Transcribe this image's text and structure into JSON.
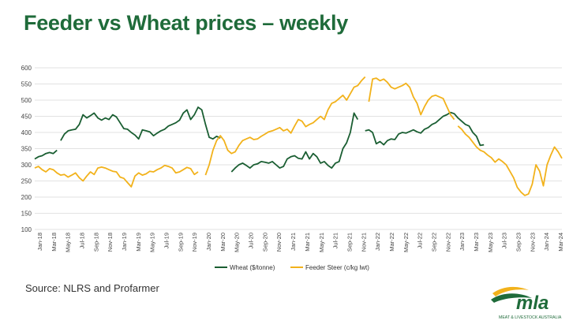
{
  "title": "Feeder vs Wheat prices – weekly",
  "source": "Source: NLRS and Profarmer",
  "logo": {
    "text": "mla",
    "subtext": "MEAT & LIVESTOCK AUSTRALIA"
  },
  "colors": {
    "title": "#1f6b3a",
    "wheat": "#1a5e32",
    "feeder": "#f2b21b",
    "grid": "#d9d9d9"
  },
  "chart_data": {
    "type": "line",
    "title": "Feeder vs Wheat prices – weekly",
    "xlabel": "",
    "ylabel": "",
    "ylim": [
      100,
      600
    ],
    "yticks": [
      100,
      150,
      200,
      250,
      300,
      350,
      400,
      450,
      500,
      550,
      600
    ],
    "grid": "horizontal",
    "legend": "bottom-center",
    "x_tick_labels": [
      "Jan-18",
      "Mar-18",
      "May-18",
      "Jul-18",
      "Sep-18",
      "Nov-18",
      "Jan-19",
      "Mar-19",
      "May-19",
      "Jul-19",
      "Sep-19",
      "Nov-19",
      "Jan-20",
      "Mar-20",
      "May-20",
      "Jul-20",
      "Sep-20",
      "Nov-20",
      "Jan-21",
      "Mar-21",
      "May-21",
      "Jul-21",
      "Sep-21",
      "Nov-21",
      "Jan-22",
      "Mar-22",
      "May-22",
      "Jul-22",
      "Sep-22",
      "Nov-22",
      "Jan-23",
      "Mar-23",
      "May-23",
      "Jul-23",
      "Sep-23",
      "Nov-23",
      "Jan-24",
      "Mar-24"
    ],
    "series": [
      {
        "name": "Wheat ($/tonne)",
        "color": "#1a5e32",
        "segments": [
          [
            [
              0,
              318
            ],
            [
              0.5,
              325
            ],
            [
              1,
              328
            ],
            [
              1.5,
              335
            ],
            [
              2,
              338
            ],
            [
              2.5,
              335
            ],
            [
              3,
              345
            ]
          ],
          [
            [
              3.5,
              375
            ],
            [
              4,
              395
            ],
            [
              4.5,
              405
            ],
            [
              5,
              408
            ],
            [
              5.5,
              410
            ],
            [
              6,
              425
            ],
            [
              6.5,
              455
            ],
            [
              7,
              445
            ],
            [
              7.5,
              452
            ],
            [
              8,
              460
            ],
            [
              8.5,
              445
            ],
            [
              9,
              438
            ],
            [
              9.5,
              445
            ],
            [
              10,
              440
            ],
            [
              10.5,
              455
            ],
            [
              11,
              448
            ],
            [
              11.5,
              430
            ],
            [
              12,
              412
            ],
            [
              12.5,
              410
            ],
            [
              13,
              400
            ],
            [
              13.5,
              392
            ],
            [
              14,
              380
            ],
            [
              14.5,
              408
            ],
            [
              15,
              405
            ],
            [
              15.5,
              402
            ],
            [
              16,
              390
            ],
            [
              16.5,
              398
            ],
            [
              17,
              405
            ],
            [
              17.5,
              410
            ],
            [
              18,
              420
            ],
            [
              18.5,
              425
            ],
            [
              19,
              430
            ],
            [
              19.5,
              438
            ],
            [
              20,
              460
            ],
            [
              20.5,
              470
            ],
            [
              21,
              440
            ],
            [
              21.5,
              455
            ],
            [
              22,
              478
            ],
            [
              22.5,
              470
            ],
            [
              23,
              425
            ],
            [
              23.5,
              385
            ],
            [
              24,
              380
            ],
            [
              24.5,
              388
            ],
            [
              25,
              383
            ]
          ],
          [
            [
              26.5,
              278
            ],
            [
              27,
              290
            ],
            [
              27.5,
              300
            ],
            [
              28,
              305
            ],
            [
              28.5,
              298
            ],
            [
              29,
              290
            ],
            [
              29.5,
              300
            ],
            [
              30,
              303
            ],
            [
              30.5,
              310
            ],
            [
              31,
              308
            ],
            [
              31.5,
              305
            ],
            [
              32,
              310
            ],
            [
              32.5,
              300
            ],
            [
              33,
              290
            ],
            [
              33.5,
              295
            ],
            [
              34,
              318
            ],
            [
              34.5,
              325
            ],
            [
              35,
              328
            ],
            [
              35.5,
              320
            ],
            [
              36,
              318
            ],
            [
              36.5,
              340
            ],
            [
              37,
              318
            ],
            [
              37.5,
              335
            ],
            [
              38,
              325
            ],
            [
              38.5,
              305
            ],
            [
              39,
              310
            ],
            [
              39.5,
              298
            ],
            [
              40,
              290
            ],
            [
              40.5,
              305
            ],
            [
              41,
              310
            ],
            [
              41.5,
              350
            ],
            [
              42,
              368
            ],
            [
              42.5,
              400
            ],
            [
              43,
              460
            ],
            [
              43.5,
              440
            ]
          ],
          [
            [
              44.5,
              405
            ],
            [
              45,
              408
            ],
            [
              45.5,
              400
            ],
            [
              46,
              365
            ],
            [
              46.5,
              372
            ],
            [
              47,
              362
            ],
            [
              47.5,
              375
            ],
            [
              48,
              380
            ],
            [
              48.5,
              378
            ],
            [
              49,
              395
            ],
            [
              49.5,
              400
            ],
            [
              50,
              398
            ],
            [
              50.5,
              403
            ],
            [
              51,
              408
            ],
            [
              51.5,
              402
            ],
            [
              52,
              398
            ],
            [
              52.5,
              410
            ],
            [
              53,
              415
            ],
            [
              53.5,
              425
            ],
            [
              54,
              430
            ],
            [
              54.5,
              440
            ],
            [
              55,
              450
            ],
            [
              55.5,
              455
            ],
            [
              56,
              462
            ],
            [
              56.5,
              458
            ],
            [
              57,
              445
            ],
            [
              57.5,
              435
            ],
            [
              58,
              425
            ],
            [
              58.5,
              420
            ],
            [
              59,
              400
            ],
            [
              59.5,
              388
            ],
            [
              60,
              360
            ],
            [
              60.5,
              362
            ]
          ]
        ]
      },
      {
        "name": "Feeder Steer (c/kg lwt)",
        "color": "#f2b21b",
        "segments": [
          [
            [
              0,
              290
            ],
            [
              0.5,
              295
            ],
            [
              1,
              285
            ],
            [
              1.5,
              278
            ],
            [
              2,
              288
            ],
            [
              2.5,
              285
            ],
            [
              3,
              275
            ],
            [
              3.5,
              268
            ],
            [
              4,
              270
            ],
            [
              4.5,
              262
            ],
            [
              5,
              268
            ],
            [
              5.5,
              275
            ],
            [
              6,
              260
            ],
            [
              6.5,
              250
            ],
            [
              7,
              265
            ],
            [
              7.5,
              278
            ],
            [
              8,
              270
            ],
            [
              8.5,
              290
            ],
            [
              9,
              293
            ],
            [
              9.5,
              290
            ],
            [
              10,
              285
            ],
            [
              10.5,
              280
            ],
            [
              11,
              278
            ],
            [
              11.5,
              262
            ],
            [
              12,
              258
            ],
            [
              12.5,
              245
            ],
            [
              13,
              232
            ],
            [
              13.5,
              265
            ],
            [
              14,
              275
            ],
            [
              14.5,
              268
            ],
            [
              15,
              272
            ],
            [
              15.5,
              280
            ],
            [
              16,
              278
            ],
            [
              16.5,
              285
            ],
            [
              17,
              290
            ],
            [
              17.5,
              298
            ],
            [
              18,
              295
            ],
            [
              18.5,
              290
            ],
            [
              19,
              275
            ],
            [
              19.5,
              278
            ],
            [
              20,
              285
            ],
            [
              20.5,
              292
            ],
            [
              21,
              288
            ],
            [
              21.5,
              270
            ],
            [
              22,
              278
            ]
          ],
          [
            [
              23,
              268
            ],
            [
              23.5,
              300
            ],
            [
              24,
              345
            ],
            [
              24.5,
              375
            ],
            [
              25,
              390
            ],
            [
              25.5,
              375
            ],
            [
              26,
              345
            ],
            [
              26.5,
              335
            ],
            [
              27,
              340
            ],
            [
              27.5,
              360
            ],
            [
              28,
              375
            ],
            [
              28.5,
              380
            ],
            [
              29,
              385
            ],
            [
              29.5,
              378
            ],
            [
              30,
              380
            ],
            [
              30.5,
              388
            ],
            [
              31,
              395
            ],
            [
              31.5,
              402
            ],
            [
              32,
              405
            ],
            [
              32.5,
              410
            ],
            [
              33,
              415
            ],
            [
              33.5,
              405
            ],
            [
              34,
              410
            ],
            [
              34.5,
              398
            ],
            [
              35,
              420
            ],
            [
              35.5,
              440
            ],
            [
              36,
              435
            ],
            [
              36.5,
              418
            ],
            [
              37,
              425
            ],
            [
              37.5,
              430
            ],
            [
              38,
              440
            ],
            [
              38.5,
              450
            ],
            [
              39,
              440
            ],
            [
              39.5,
              470
            ],
            [
              40,
              490
            ],
            [
              40.5,
              495
            ],
            [
              41,
              505
            ],
            [
              41.5,
              515
            ],
            [
              42,
              500
            ],
            [
              42.5,
              520
            ],
            [
              43,
              540
            ],
            [
              43.5,
              545
            ],
            [
              44,
              560
            ],
            [
              44.5,
              572
            ]
          ],
          [
            [
              45,
              495
            ],
            [
              45.5,
              565
            ],
            [
              46,
              568
            ],
            [
              46.5,
              560
            ],
            [
              47,
              565
            ],
            [
              47.5,
              555
            ],
            [
              48,
              540
            ],
            [
              48.5,
              535
            ],
            [
              49,
              540
            ],
            [
              49.5,
              545
            ],
            [
              50,
              552
            ],
            [
              50.5,
              540
            ],
            [
              51,
              510
            ],
            [
              51.5,
              490
            ],
            [
              52,
              455
            ],
            [
              52.5,
              480
            ],
            [
              53,
              500
            ],
            [
              53.5,
              512
            ],
            [
              54,
              515
            ],
            [
              54.5,
              510
            ],
            [
              55,
              505
            ],
            [
              55.5,
              480
            ],
            [
              56,
              455
            ],
            [
              56.5,
              440
            ]
          ],
          [
            [
              57,
              420
            ],
            [
              57.5,
              410
            ],
            [
              58,
              395
            ],
            [
              58.5,
              385
            ],
            [
              59,
              370
            ],
            [
              59.5,
              355
            ],
            [
              60,
              345
            ],
            [
              60.5,
              340
            ],
            [
              61,
              330
            ],
            [
              61.5,
              322
            ],
            [
              62,
              308
            ],
            [
              62.5,
              318
            ],
            [
              63,
              310
            ],
            [
              63.5,
              300
            ],
            [
              64,
              280
            ],
            [
              64.5,
              260
            ],
            [
              65,
              230
            ],
            [
              65.5,
              215
            ],
            [
              66,
              205
            ],
            [
              66.5,
              210
            ],
            [
              67,
              240
            ],
            [
              67.5,
              300
            ],
            [
              68,
              280
            ],
            [
              68.5,
              235
            ],
            [
              69,
              300
            ],
            [
              69.5,
              330
            ],
            [
              70,
              355
            ],
            [
              70.5,
              340
            ],
            [
              71,
              320
            ]
          ]
        ]
      }
    ]
  }
}
